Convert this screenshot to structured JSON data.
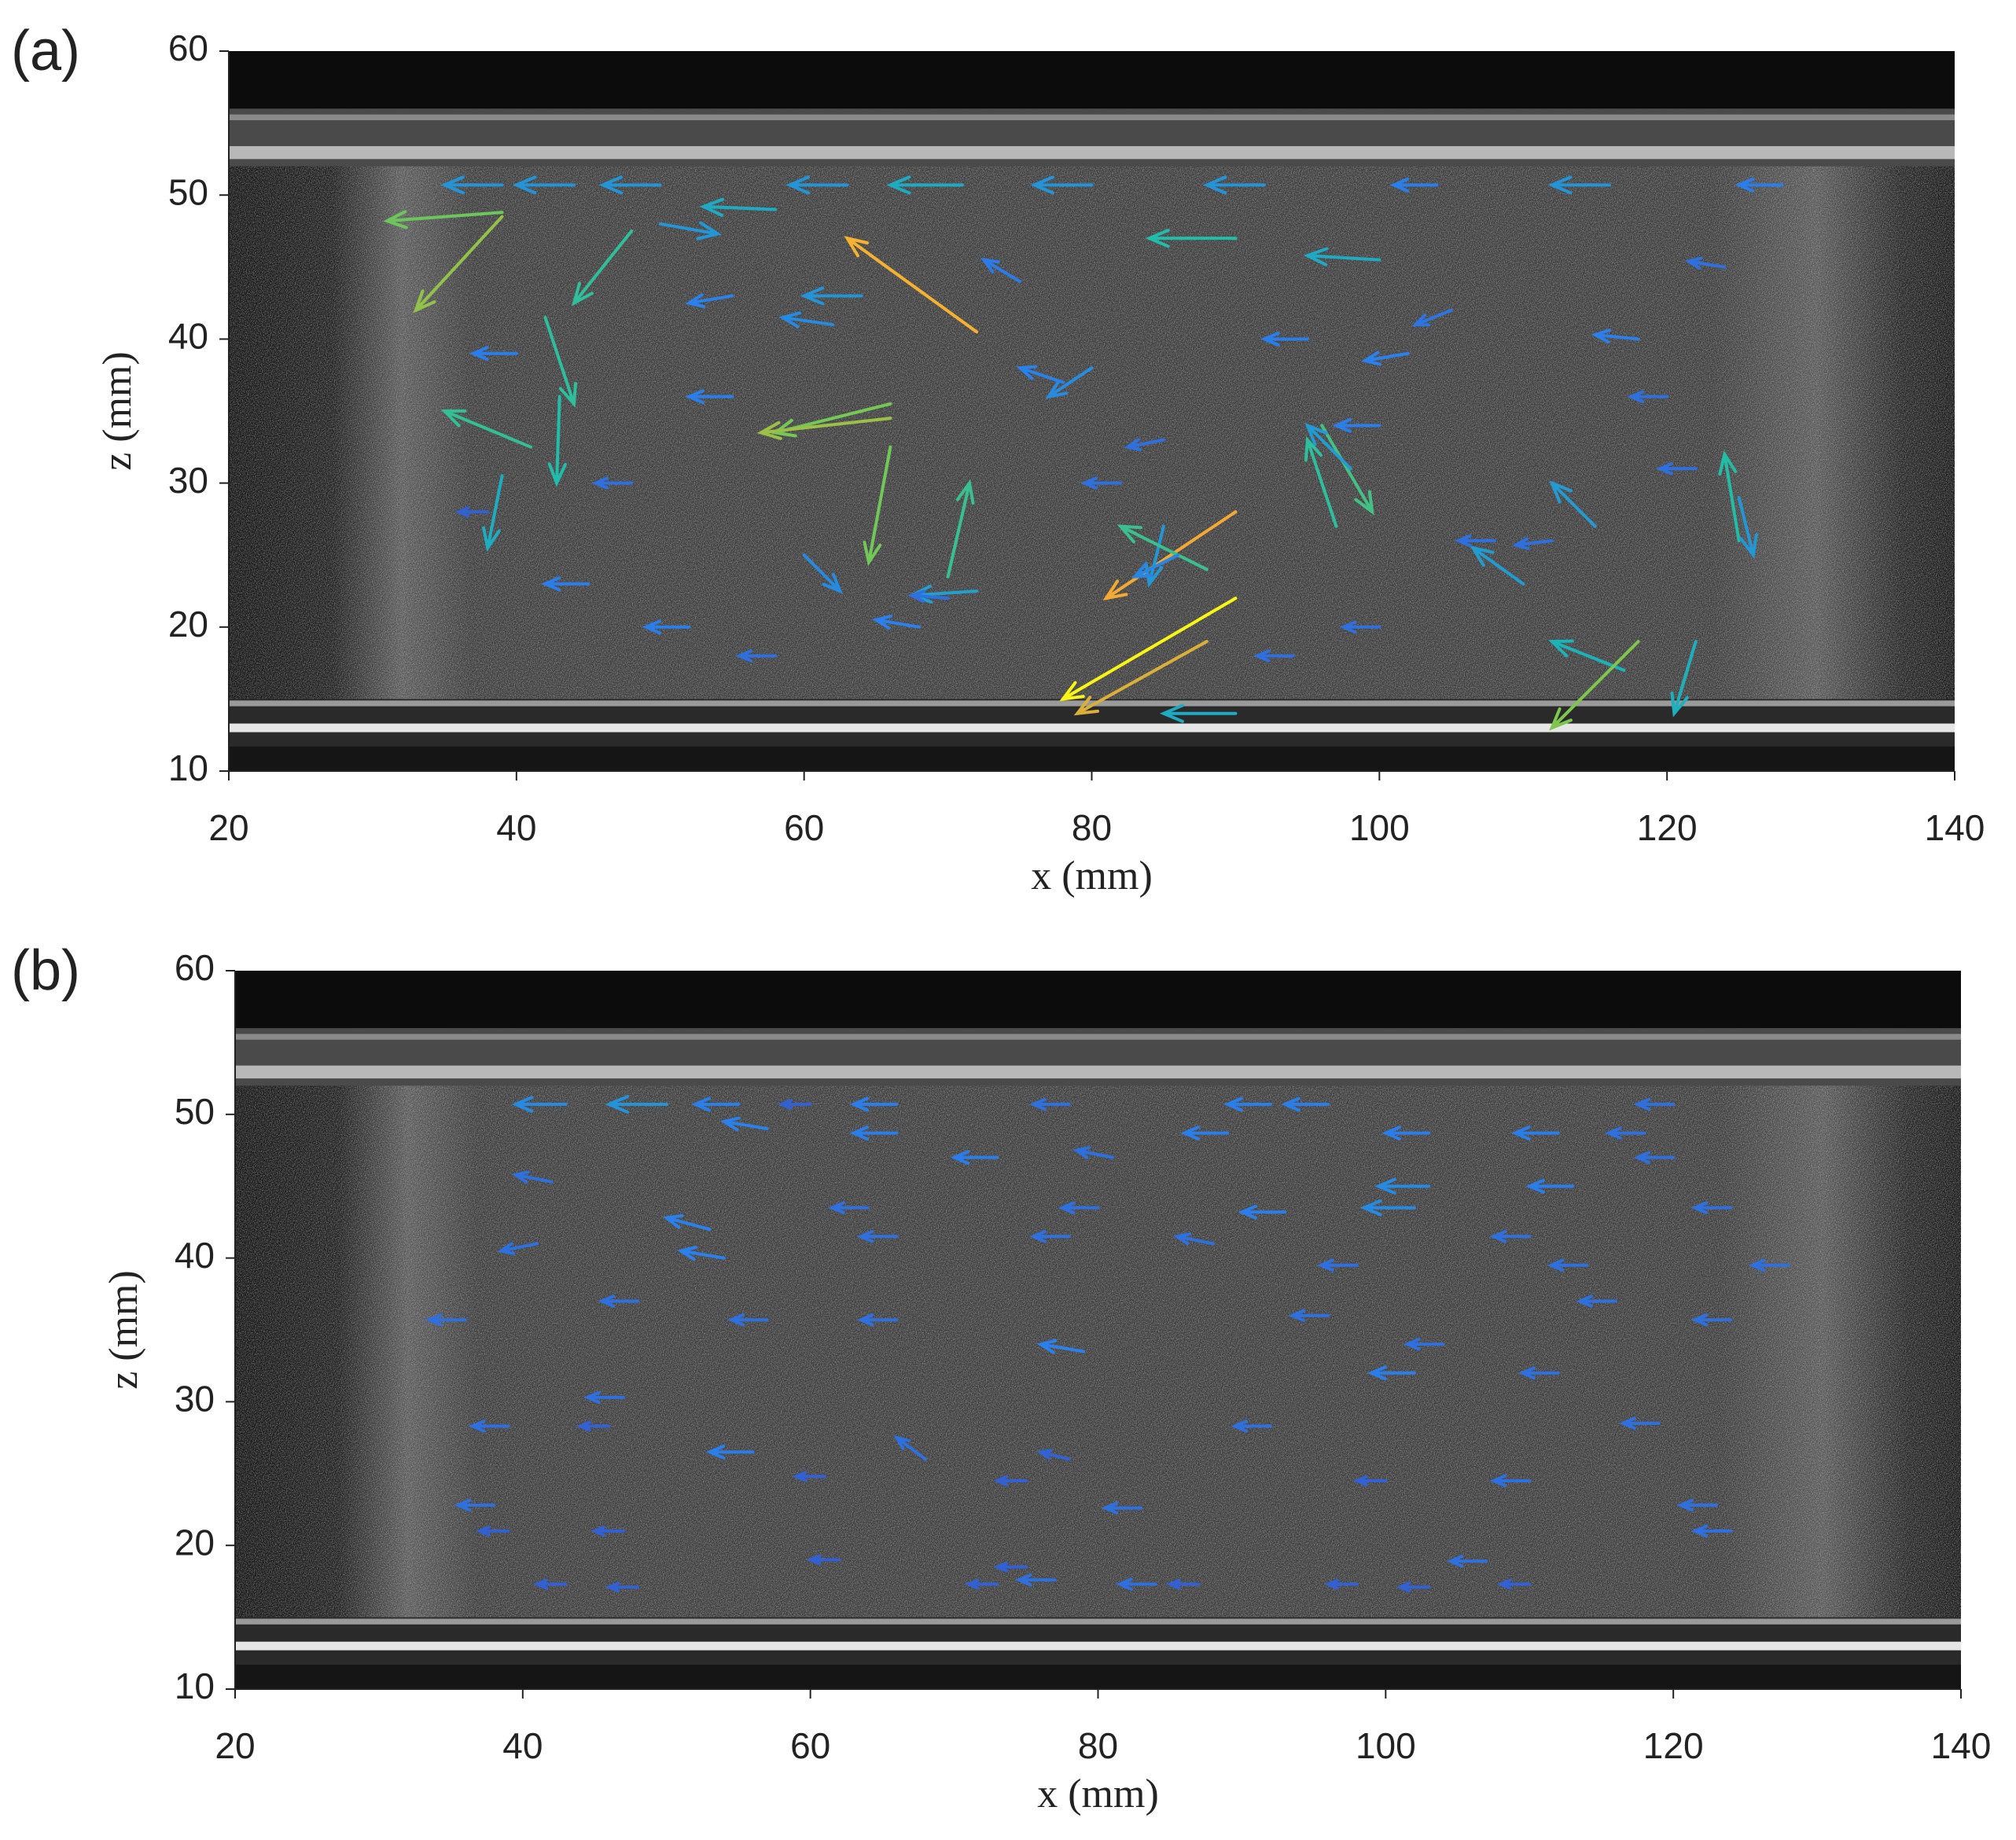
{
  "chart_data": [
    {
      "type": "quiver",
      "panel_label": "(a)",
      "xlabel": "x (mm)",
      "ylabel": "z (mm)",
      "colormap": "parula",
      "xlim": [
        20,
        140
      ],
      "ylim": [
        10,
        60
      ],
      "xticks": [
        20,
        40,
        60,
        80,
        100,
        120,
        140
      ],
      "yticks": [
        10,
        20,
        30,
        40,
        50,
        60
      ],
      "x": [
        39,
        44,
        50,
        63,
        71,
        80,
        92,
        104,
        116,
        128,
        58,
        90,
        100,
        39,
        39,
        48,
        50,
        72,
        66,
        66,
        66,
        72,
        70,
        43,
        42,
        39,
        41,
        90,
        90,
        85,
        88,
        96,
        98,
        97,
        117,
        118,
        122,
        125,
        125,
        88,
        90,
        60,
        80,
        110,
        115,
        55,
        62,
        75,
        95,
        105,
        120,
        45,
        52,
        68,
        85,
        100,
        112,
        124,
        38,
        48,
        58,
        70,
        82,
        94,
        108,
        122,
        40,
        55,
        78,
        102,
        118,
        64,
        86,
        100
      ],
      "y": [
        50.7,
        50.7,
        50.7,
        50.7,
        50.7,
        50.7,
        50.7,
        50.7,
        50.7,
        50.7,
        49,
        47,
        45.5,
        48.8,
        48.5,
        47.5,
        48,
        40.5,
        35.5,
        34.5,
        32.5,
        22.5,
        23.5,
        36,
        41.5,
        30.5,
        32.5,
        28,
        22,
        27,
        24,
        34,
        31,
        27,
        17,
        19,
        19,
        26,
        29,
        19,
        14,
        25,
        38,
        23,
        27,
        36,
        41,
        44,
        40,
        42,
        36,
        23,
        20,
        20,
        33,
        34,
        26,
        45,
        28,
        30,
        18,
        22,
        30,
        18,
        26,
        31,
        39,
        43,
        37,
        39,
        40,
        43,
        25,
        20
      ],
      "u": [
        -4,
        -4,
        -4,
        -4,
        -5,
        -4,
        -4,
        -3,
        -4,
        -3,
        -5,
        -6,
        -5,
        -8,
        -6,
        -4,
        4,
        -9,
        -8,
        -9,
        -1.5,
        -4.5,
        1.5,
        -0.2,
        2,
        -1,
        -6,
        -9,
        -12,
        -1,
        -6,
        3.5,
        -3,
        -2,
        -5,
        -6,
        -1.5,
        -1,
        1,
        -9,
        -5,
        2.5,
        -3,
        -3.5,
        -3,
        -3,
        -3.5,
        -2.5,
        -3,
        -2.5,
        -2.5,
        -3,
        -3,
        -3,
        -2.5,
        -3,
        -2.5,
        -2.5,
        -2,
        -2.5,
        -2.5,
        -2.5,
        -2.5,
        -2.5,
        -2.5,
        -2.5,
        -3,
        -3,
        -3,
        -3,
        -3,
        -4,
        -3,
        -2.5
      ],
      "v": [
        0,
        0,
        0,
        0,
        0,
        0,
        0,
        0,
        0,
        0,
        0.2,
        0,
        0.3,
        -0.6,
        -6.5,
        -5,
        -0.7,
        6.5,
        -2,
        -1,
        -8,
        -0.3,
        6.5,
        -6,
        -6,
        -5,
        2.5,
        -6,
        -7,
        -4,
        3,
        -6,
        3,
        6,
        2,
        -6,
        -5,
        6,
        -4,
        -5,
        0,
        -2.5,
        -2,
        2.5,
        3,
        0,
        0.5,
        1.5,
        0,
        -1,
        0,
        0,
        0,
        0.5,
        -0.5,
        0,
        -0.3,
        0.4,
        0,
        0,
        0,
        0.2,
        0,
        0,
        0,
        0,
        0,
        -0.5,
        1,
        -0.5,
        0.3,
        0,
        -1.5,
        0
      ]
    },
    {
      "type": "quiver",
      "panel_label": "(b)",
      "xlabel": "x (mm)",
      "ylabel": "z (mm)",
      "colormap": "parula",
      "xlim": [
        20,
        140
      ],
      "ylim": [
        10,
        60
      ],
      "xticks": [
        20,
        40,
        60,
        80,
        100,
        120,
        140
      ],
      "yticks": [
        10,
        20,
        30,
        40,
        50,
        60
      ],
      "x": [
        43,
        50,
        55,
        60,
        66,
        78,
        92,
        96,
        103,
        112,
        118,
        120,
        57,
        66,
        73,
        81,
        89,
        103,
        113,
        120,
        42,
        53,
        64,
        80,
        93,
        102,
        110,
        124,
        41,
        54,
        66,
        78,
        88,
        98,
        114,
        128,
        36,
        48,
        57,
        66,
        79,
        96,
        104,
        116,
        124,
        39,
        47,
        56,
        68,
        78,
        92,
        102,
        112,
        119,
        38,
        46,
        61,
        75,
        83,
        100,
        110,
        123,
        39,
        47,
        62,
        75,
        84,
        98,
        107,
        124,
        43,
        48,
        73,
        77,
        87,
        103,
        110
      ],
      "y": [
        50.7,
        50.7,
        50.7,
        50.7,
        50.7,
        50.7,
        50.7,
        50.7,
        48.7,
        48.7,
        48.7,
        50.7,
        49,
        48.7,
        47,
        47,
        48.7,
        45,
        45,
        47,
        45.3,
        42,
        43.5,
        43.5,
        43.2,
        43.5,
        41.5,
        43.5,
        41,
        40,
        41.5,
        41.5,
        41,
        39.5,
        39.5,
        39.5,
        35.7,
        37,
        35.7,
        35.7,
        33.5,
        36,
        34,
        37,
        35.7,
        28.3,
        30.3,
        26.5,
        26,
        26,
        28.3,
        32,
        32,
        28.5,
        22.8,
        28.3,
        24.8,
        24.5,
        22.6,
        24.5,
        24.5,
        22.8,
        21,
        21,
        19,
        18.5,
        17.3,
        17.3,
        18.9,
        21,
        17.3,
        17.1,
        17.3,
        17.6,
        17.3,
        17.1,
        17.3
      ],
      "u": [
        -3.5,
        -4,
        -3,
        -2,
        -3,
        -2.5,
        -3,
        -3,
        -3,
        -3,
        -2.5,
        -2.5,
        -3,
        -3,
        -3,
        -2.5,
        -3,
        -3.5,
        -3,
        -2.5,
        -2.5,
        -3,
        -2.5,
        -2.5,
        -3,
        -3.5,
        -2.5,
        -2.5,
        -2.5,
        -3,
        -2.5,
        -2.5,
        -2.5,
        -2.5,
        -2.5,
        -2.5,
        -2.5,
        -2.5,
        -2.5,
        -2.5,
        -3,
        -2.5,
        -2.5,
        -2.5,
        -2.5,
        -2.5,
        -2.5,
        -3,
        -2,
        -2,
        -2.5,
        -3,
        -2.5,
        -2.5,
        -2.5,
        -2,
        -2,
        -2,
        -2.5,
        -2,
        -2.5,
        -2.5,
        -2,
        -2,
        -2,
        -2,
        -2.5,
        -2,
        -2.5,
        -2.5,
        -2,
        -2,
        -2,
        -2.5,
        -2,
        -2,
        -2
      ],
      "v": [
        0,
        0,
        0,
        0,
        0,
        0,
        0,
        0,
        0,
        0,
        0,
        0,
        0.5,
        0,
        0,
        0.5,
        0,
        0,
        0,
        0,
        0.5,
        0.8,
        0,
        0,
        0,
        0,
        0,
        0,
        -0.5,
        0.5,
        0,
        0,
        0.5,
        0,
        0,
        0,
        0,
        0,
        0,
        0,
        0.5,
        0,
        0,
        0,
        0,
        0,
        0,
        0,
        1.5,
        0.5,
        0,
        0,
        0,
        0,
        0,
        0,
        0,
        0,
        0,
        0,
        0,
        0,
        0,
        0,
        0,
        0,
        0,
        0,
        0,
        0,
        0,
        0,
        0,
        0,
        0,
        0,
        0
      ]
    }
  ]
}
